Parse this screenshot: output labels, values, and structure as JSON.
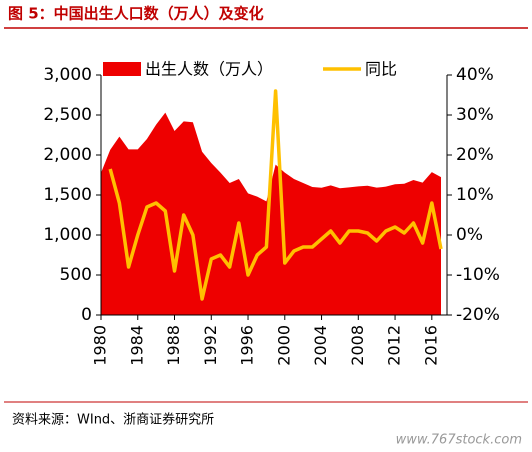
{
  "chart_data": {
    "type": "area-line",
    "title": "图 5：中国出生人口数（万人）及变化",
    "source": "资料来源：WInd、浙商证券研究所",
    "watermark": "www.767stock.com",
    "x": [
      1980,
      1981,
      1982,
      1983,
      1984,
      1985,
      1986,
      1987,
      1988,
      1989,
      1990,
      1991,
      1992,
      1993,
      1994,
      1995,
      1996,
      1997,
      1998,
      1999,
      2000,
      2001,
      2002,
      2003,
      2004,
      2005,
      2006,
      2007,
      2008,
      2009,
      2010,
      2011,
      2012,
      2013,
      2014,
      2015,
      2016,
      2017
    ],
    "xlim": [
      1980,
      2017
    ],
    "xticks": [
      1980,
      1984,
      1988,
      1992,
      1996,
      2000,
      2004,
      2008,
      2012,
      2016
    ],
    "ylim": [
      0,
      3000
    ],
    "yticks": [
      0,
      500,
      {
        "value": 1000,
        "label": "1,000"
      },
      {
        "value": 1500,
        "label": "1,500"
      },
      {
        "value": 2000,
        "label": "2,000"
      },
      {
        "value": 2500,
        "label": "2,500"
      },
      {
        "value": 3000,
        "label": "3,000"
      }
    ],
    "y2lim": [
      -20,
      40
    ],
    "y2ticks": [
      {
        "value": -20,
        "label": "-20%"
      },
      {
        "value": -10,
        "label": "-10%"
      },
      {
        "value": 0,
        "label": "0%"
      },
      {
        "value": 10,
        "label": "10%"
      },
      {
        "value": 20,
        "label": "20%"
      },
      {
        "value": 30,
        "label": "30%"
      },
      {
        "value": 40,
        "label": "40%"
      }
    ],
    "legend": "top",
    "series": [
      {
        "name": "出生人数（万人）",
        "type": "area",
        "color": "#ee0000",
        "values": [
          1776,
          2064,
          2230,
          2070,
          2070,
          2200,
          2380,
          2530,
          2300,
          2420,
          2410,
          2040,
          1900,
          1780,
          1650,
          1700,
          1520,
          1480,
          1420,
          1880,
          1780,
          1700,
          1650,
          1600,
          1590,
          1620,
          1585,
          1595,
          1608,
          1615,
          1592,
          1604,
          1635,
          1640,
          1687,
          1655,
          1786,
          1723
        ]
      },
      {
        "name": "同比",
        "type": "line",
        "axis": "y2",
        "color": "#ffc000",
        "values": [
          null,
          16.5,
          8,
          -8,
          0,
          7,
          8,
          6,
          -9,
          5,
          0,
          -16,
          -6,
          -5,
          -8,
          3,
          -10,
          -5,
          -3,
          36,
          -7,
          -4,
          -3,
          -3,
          -1,
          1,
          -2,
          1,
          1,
          0.5,
          -1.5,
          1,
          2,
          0.5,
          3,
          -2,
          8,
          -3.5
        ]
      }
    ]
  }
}
